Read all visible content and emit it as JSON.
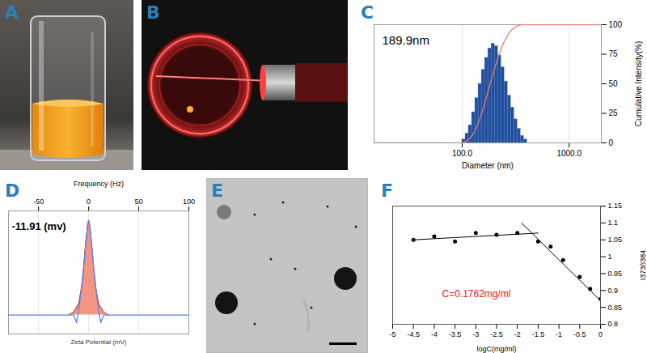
{
  "photo_panels": [
    {
      "panel": "A"
    },
    {
      "panel": "B"
    },
    {
      "panel": "E"
    }
  ],
  "chart_data": [
    {
      "panel": "C",
      "type": "histogram",
      "annotation": "189.9nm",
      "x_label": "Diameter (nm)",
      "y_label": "Cumulative Intensity(%)",
      "bins": [
        100,
        107.3,
        115.0,
        123.4,
        132.3,
        141.9,
        152.2,
        163.2,
        175.1,
        187.8,
        201.4,
        216.0,
        231.6,
        248.4,
        266.4,
        285.7,
        306.5,
        328.7,
        352.5,
        378.1,
        405.5
      ],
      "values": [
        3,
        8,
        15,
        26,
        38,
        50,
        62,
        72,
        80,
        84,
        82,
        74,
        64,
        52,
        40,
        30,
        20,
        12,
        6,
        3
      ],
      "color": "#1f4e9a",
      "cumulative": {
        "x": [
          15,
          100,
          107.3,
          115.0,
          123.4,
          132.3,
          141.9,
          152.2,
          163.2,
          175.1,
          187.8,
          201.4,
          216.0,
          231.6,
          248.4,
          266.4,
          285.7,
          306.5,
          328.7,
          352.5,
          378.1,
          405.5,
          2000
        ],
        "values": [
          0,
          0,
          1,
          3,
          6,
          11,
          17,
          25,
          34,
          44,
          54,
          63,
          72,
          80,
          86,
          91,
          95,
          97.5,
          99,
          99.7,
          100,
          100,
          100
        ],
        "color": "#f07878"
      },
      "log": "x",
      "xlim": [
        15,
        2000
      ],
      "xticks": [
        {
          "value": 100,
          "label": "100.0"
        },
        {
          "value": 1000,
          "label": "1000.0"
        }
      ],
      "ylim": [
        0,
        100
      ],
      "yticks": [
        0,
        25,
        50,
        75,
        100
      ],
      "grid": true
    },
    {
      "panel": "D",
      "type": "area",
      "annotation": "-11.91 (mv)",
      "top_label": "Frequency (Hz)",
      "x_label": "Zeta Potential (mV)",
      "xlim": [
        -80,
        100
      ],
      "xticks": [
        -50,
        0,
        50,
        100
      ],
      "ylim": [
        -0.2,
        1.1
      ],
      "tick_labels": "x",
      "grid": true,
      "series": [
        {
          "type": "area",
          "color": "#f4826c",
          "x": [
            -20,
            -15,
            -10,
            -7,
            -5,
            -3,
            -1,
            0,
            1,
            3,
            5,
            7,
            10,
            15,
            20
          ],
          "values": [
            0,
            0.03,
            0.12,
            0.3,
            0.5,
            0.75,
            0.95,
            1.0,
            0.95,
            0.75,
            0.5,
            0.3,
            0.12,
            0.03,
            0
          ]
        },
        {
          "type": "line",
          "color": "#4a86e8",
          "x": [
            -80,
            -30,
            -15,
            -12,
            -10,
            -7,
            -5,
            -3,
            -1,
            0,
            1,
            3,
            5,
            7,
            10,
            12,
            15,
            30,
            100
          ],
          "values": [
            0,
            0,
            0,
            -0.08,
            0.05,
            0.3,
            0.5,
            0.75,
            0.95,
            1.0,
            0.95,
            0.75,
            0.5,
            0.3,
            0.05,
            -0.08,
            0,
            0,
            0
          ]
        }
      ]
    },
    {
      "panel": "F",
      "type": "scatter",
      "annotation": "C=0.1762mg/ml",
      "x_label": "logC(mg/ml)",
      "y_label": "I373/I384",
      "xlim": [
        -5,
        0
      ],
      "xticks": [
        -5,
        -4.5,
        -4,
        -3.5,
        -3,
        -2.5,
        -2,
        -1.5,
        -1,
        -0.5,
        0
      ],
      "ylim": [
        0.8,
        1.15
      ],
      "yticks": [
        0.8,
        0.85,
        0.9,
        0.95,
        1,
        1.05,
        1.1,
        1.15
      ],
      "color": "#000000",
      "marker": "circle",
      "x": [
        -4.5,
        -4,
        -3.5,
        -3,
        -2.5,
        -2,
        -1.5,
        -1.2,
        -0.9,
        -0.5,
        -0.25,
        0
      ],
      "values": [
        1.05,
        1.06,
        1.045,
        1.07,
        1.065,
        1.07,
        1.045,
        1.03,
        0.99,
        0.94,
        0.905,
        0.875
      ],
      "fits": [
        {
          "x": [
            -4.5,
            -1.5
          ],
          "values": [
            1.05,
            1.07
          ]
        },
        {
          "x": [
            -1.9,
            0
          ],
          "values": [
            1.1,
            0.87
          ]
        }
      ]
    }
  ]
}
